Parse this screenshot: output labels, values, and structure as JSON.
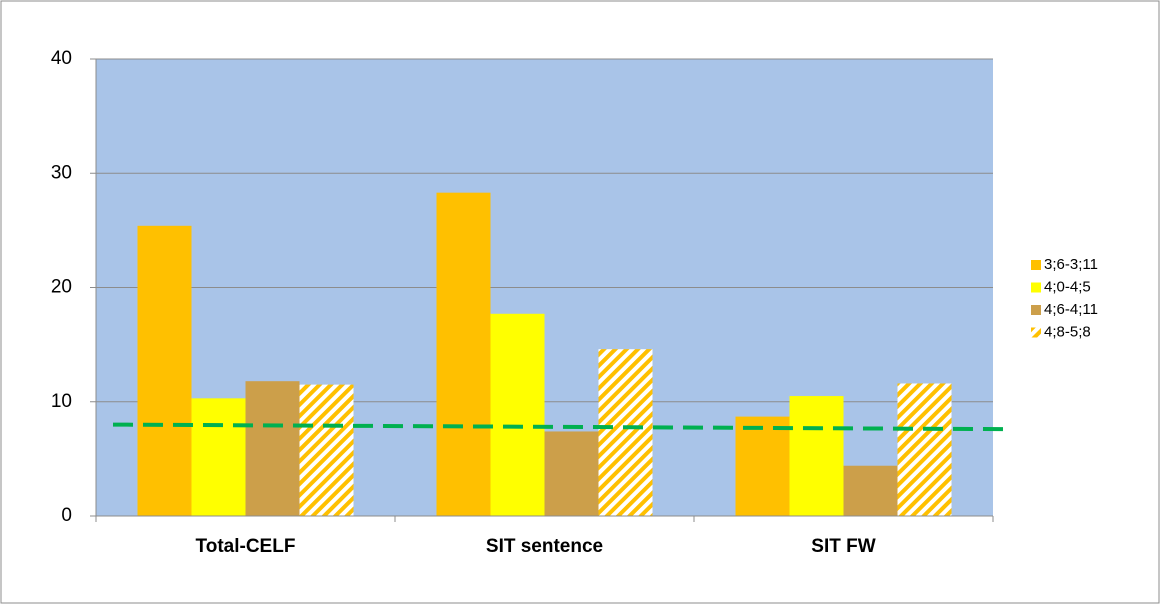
{
  "chart_data": {
    "type": "bar",
    "categories": [
      "Total-CELF",
      "SIT sentence",
      "SIT FW"
    ],
    "series": [
      {
        "name": "3;6-3;11",
        "color": "#ffc000",
        "values": [
          25.4,
          28.3,
          8.7
        ]
      },
      {
        "name": "4;0-4;5",
        "color": "#ffff00",
        "values": [
          10.3,
          17.7,
          10.5
        ]
      },
      {
        "name": "4;6-4;11",
        "color": "#cc9f4a",
        "values": [
          11.8,
          7.4,
          4.4
        ]
      },
      {
        "name": "4;8-5;8",
        "color": "#ffc000",
        "pattern": "hatch",
        "values": [
          11.5,
          14.6,
          11.6
        ]
      }
    ],
    "ylim": [
      0,
      40
    ],
    "yticks": [
      0,
      10,
      20,
      30,
      40
    ],
    "grid": true,
    "legend": "right",
    "reference_line": {
      "values": [
        8.0,
        7.6
      ],
      "color": "#00b050",
      "style": "dashed"
    }
  }
}
